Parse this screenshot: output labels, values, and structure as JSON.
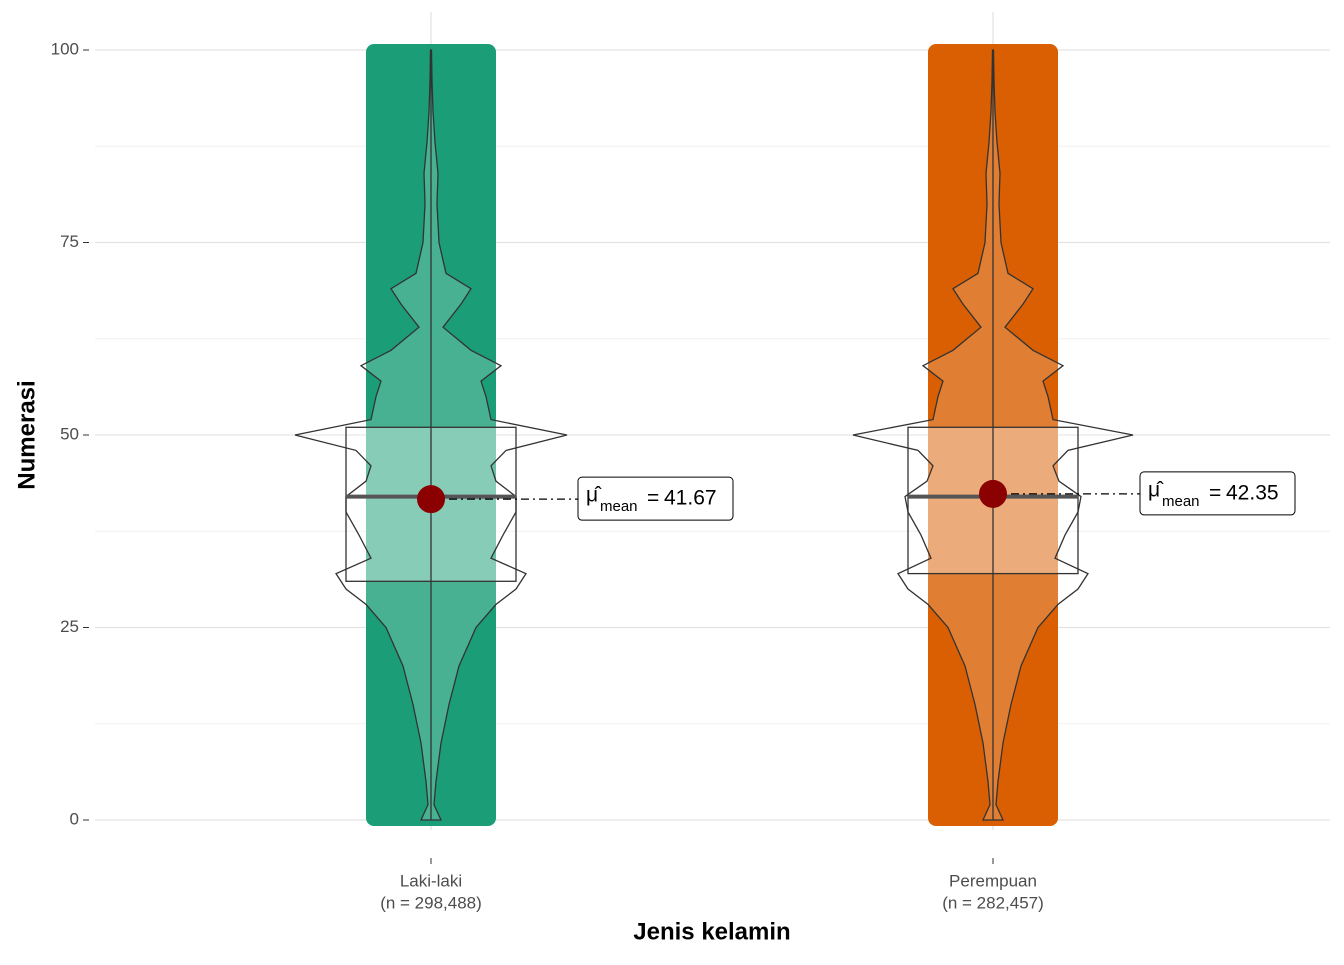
{
  "chart_data": {
    "type": "violin",
    "x_label": "Jenis kelamin",
    "y_label": "Numerasi",
    "ylim": [
      0,
      100
    ],
    "yticks": [
      0,
      25,
      50,
      75,
      100
    ],
    "yminor": [
      12.5,
      37.5,
      62.5,
      87.5
    ],
    "grid": true,
    "mean_symbol": "μ̂",
    "mean_subscript": "mean",
    "mean_operator": "=",
    "violin_y": [
      0,
      2,
      5,
      10,
      15,
      20,
      25,
      28,
      30,
      32,
      34,
      37,
      40,
      42,
      44,
      46,
      48,
      50,
      52,
      55,
      57,
      59,
      61,
      64,
      67,
      69,
      71,
      75,
      80,
      84,
      88,
      92,
      96,
      100
    ],
    "groups": [
      {
        "name": "Laki-laki",
        "n_label": "(n = 298,488)",
        "color": "#1b9e77",
        "min": 0,
        "q1": 31,
        "median": 42,
        "q3": 51,
        "max": 100,
        "mean": 41.67,
        "density": [
          10,
          3,
          5,
          10,
          18,
          28,
          45,
          65,
          85,
          95,
          60,
          72,
          85,
          85,
          65,
          60,
          75,
          136,
          60,
          55,
          50,
          70,
          40,
          12,
          30,
          40,
          15,
          8,
          6,
          7,
          4,
          2,
          1,
          0.5
        ]
      },
      {
        "name": "Perempuan",
        "n_label": "(n = 282,457)",
        "color": "#d95f02",
        "min": 0,
        "q1": 32,
        "median": 42,
        "q3": 51,
        "max": 100,
        "mean": 42.35,
        "density": [
          10,
          3,
          5,
          10,
          18,
          28,
          45,
          65,
          85,
          95,
          62,
          72,
          85,
          88,
          66,
          60,
          75,
          140,
          60,
          55,
          50,
          70,
          40,
          12,
          30,
          40,
          15,
          8,
          6,
          7,
          4,
          2,
          1,
          0.5
        ]
      }
    ]
  }
}
